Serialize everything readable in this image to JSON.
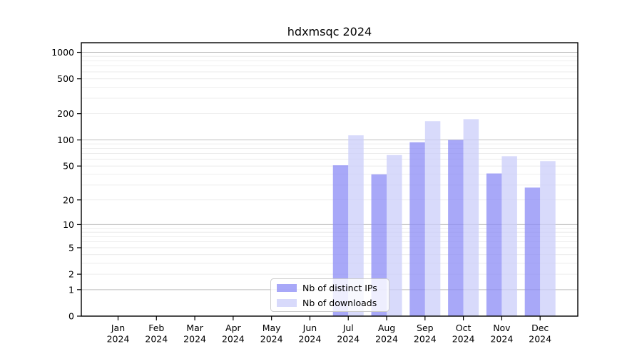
{
  "chart_data": {
    "type": "bar",
    "title": "hdxmsqc 2024",
    "categories": [
      "Jan",
      "Feb",
      "Mar",
      "Apr",
      "May",
      "Jun",
      "Jul",
      "Aug",
      "Sep",
      "Oct",
      "Nov",
      "Dec"
    ],
    "x_tick_year": "2024",
    "series": [
      {
        "name": "Nb of distinct IPs",
        "color": "#8b8bf6",
        "values": [
          0,
          0,
          0,
          0,
          0,
          0,
          51,
          40,
          94,
          100,
          41,
          28
        ]
      },
      {
        "name": "Nb of downloads",
        "color": "#cbcefa",
        "values": [
          0,
          0,
          0,
          0,
          0,
          0,
          113,
          67,
          164,
          173,
          65,
          57
        ]
      }
    ],
    "bar_opacity": 0.75,
    "y_ticks": [
      0,
      1,
      2,
      5,
      10,
      20,
      50,
      100,
      200,
      500,
      1000
    ],
    "y_scale": "log1p",
    "ylim": [
      0,
      1288
    ],
    "xlabel": "",
    "ylabel": "",
    "grid": "horizontal",
    "legend_position": "lower-center"
  },
  "colors": {
    "background": "#ffffff",
    "axis": "#000000",
    "major_grid": "#bdbdbd",
    "minor_grid": "#e8e8e8",
    "legend_border": "#cccccc"
  }
}
